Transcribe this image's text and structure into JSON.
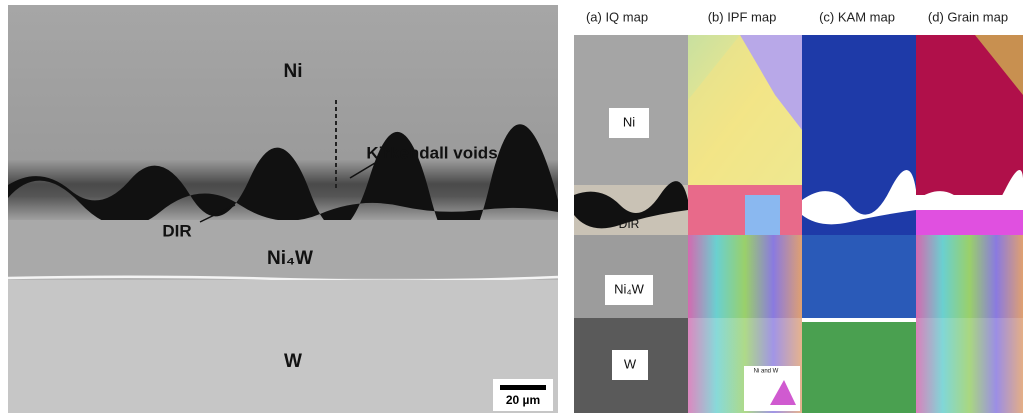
{
  "sem_image": {
    "labels": {
      "ni": "Ni",
      "voids": "Kirkendall voids",
      "dir": "DIR",
      "ni4w": "Ni₄W",
      "w": "W"
    },
    "scale_bar": "20 µm"
  },
  "ebsd_panels": {
    "titles": [
      "(a) IQ map",
      "(b) IPF map",
      "(c) KAM map",
      "(d) Grain map"
    ],
    "iq_labels": {
      "ni": "Ni",
      "dir": "DIR",
      "ni4w": "Ni₄W",
      "w": "W"
    },
    "ipf_legend": "Ni and W"
  }
}
